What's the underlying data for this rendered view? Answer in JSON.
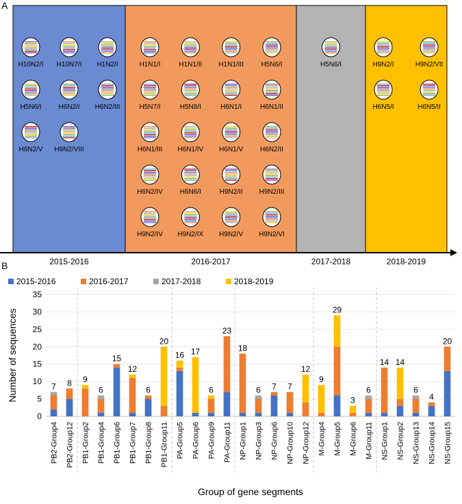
{
  "panel_a": {
    "label": "A",
    "periods": [
      {
        "name": "2015-2016",
        "color": "#6a8bd2",
        "isolates": [
          "H10N2/I",
          "H10N7/I",
          "H1N2/I",
          "H5N6/I",
          "H6N2/I",
          "H6N2/III",
          "H6N2/V",
          "H9N2/VIII"
        ]
      },
      {
        "name": "2016-2017",
        "color": "#f29a5e",
        "isolates": [
          "H1N1/I",
          "H1N1/II",
          "H1N1/III",
          "H5N6/I",
          "H5N7/I",
          "H5N8/I",
          "H6N1/I",
          "H6N1/II",
          "H6N1/III",
          "H6N1/IV",
          "H6N1/V",
          "H6N2/II",
          "H6N2/IV",
          "H6N6/I",
          "H9N2/II",
          "H9N2/III",
          "H9N2/IV",
          "H9N2/IX",
          "H9N2/V",
          "H9N2/VI"
        ]
      },
      {
        "name": "2017-2018",
        "color": "#b3b3b3",
        "isolates": [
          "H5N6/I"
        ]
      },
      {
        "name": "2018-2019",
        "color": "#ffc000",
        "isolates": [
          "H9N2/I",
          "H9N2/VII",
          "H6N5/I",
          "H6N5/II"
        ]
      }
    ]
  },
  "panel_b": {
    "label": "B"
  },
  "chart_data": {
    "type": "bar",
    "stacked": true,
    "title": "",
    "xlabel": "Group of gene segments",
    "ylabel": "Number of sequences",
    "ylim": [
      0,
      35
    ],
    "yticks": [
      0,
      5,
      10,
      15,
      20,
      25,
      30,
      35
    ],
    "legend_position": "top",
    "categories": [
      "PB2-Group4",
      "PB2-Group12",
      "PB1-Group2",
      "PB1-Group4",
      "PB1-Group6",
      "PB1-Group7",
      "PB1-Group8",
      "PB1-Group11",
      "PA-Group5",
      "PA-Group6",
      "PA-Group9",
      "PA-Group11",
      "NP-Group1",
      "NP-Group3",
      "NP-Group6",
      "NP-Group10",
      "NP-Group12",
      "M-Group4",
      "M-Group5",
      "M-Group6",
      "M-Group11",
      "NS-Group1",
      "NS-Group2",
      "NS-Group13",
      "NS-Group14",
      "NS-Group15"
    ],
    "totals": [
      7,
      8,
      9,
      6,
      15,
      12,
      6,
      20,
      16,
      17,
      6,
      23,
      18,
      6,
      7,
      7,
      12,
      9,
      29,
      3,
      6,
      14,
      14,
      6,
      4,
      20
    ],
    "series": [
      {
        "name": "2015-2016",
        "color": "#4472c4",
        "values": [
          2,
          5,
          0,
          1,
          14,
          1,
          5,
          0,
          13,
          1,
          1,
          7,
          1,
          1,
          6,
          1,
          0,
          0,
          6,
          0,
          1,
          1,
          3,
          1,
          3,
          13
        ]
      },
      {
        "name": "2016-2017",
        "color": "#ed7d31",
        "values": [
          4,
          3,
          8,
          4,
          1,
          10,
          1,
          3,
          1,
          0,
          4,
          16,
          17,
          4,
          1,
          6,
          4,
          1,
          14,
          1,
          4,
          13,
          2,
          4,
          1,
          7
        ]
      },
      {
        "name": "2017-2018",
        "color": "#a5a5a5",
        "values": [
          1,
          0,
          0,
          1,
          0,
          0,
          0,
          0,
          0,
          0,
          0,
          0,
          0,
          1,
          0,
          0,
          0,
          0,
          0,
          0,
          1,
          0,
          0,
          1,
          0,
          0
        ]
      },
      {
        "name": "2018-2019",
        "color": "#ffc000",
        "values": [
          0,
          0,
          1,
          0,
          0,
          1,
          0,
          17,
          2,
          16,
          1,
          0,
          0,
          0,
          0,
          0,
          8,
          8,
          9,
          2,
          0,
          0,
          9,
          0,
          0,
          0
        ]
      }
    ],
    "group_separators_after": [
      "PB2-Group12",
      "PB1-Group11",
      "PA-Group11",
      "NP-Group12",
      "M-Group11"
    ]
  }
}
